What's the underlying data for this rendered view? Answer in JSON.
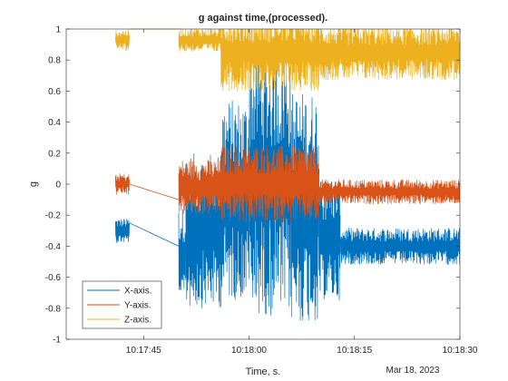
{
  "chart_data": {
    "type": "line",
    "title": "g against time,(processed).",
    "xlabel": "Time, s.",
    "ylabel": "g",
    "x_date_label": "Mar 18, 2023",
    "x_range": [
      "10:17:34",
      "10:18:30"
    ],
    "x_ticks": [
      "10:17:45",
      "10:18:00",
      "10:18:15",
      "10:18:30"
    ],
    "ylim": [
      -1,
      1
    ],
    "y_ticks": [
      -1,
      -0.8,
      -0.6,
      -0.4,
      -0.2,
      0,
      0.2,
      0.4,
      0.6,
      0.8,
      1
    ],
    "grid": false,
    "legend_position": "bottom-left",
    "series": [
      {
        "name": "X-axis.",
        "color": "#0072BD",
        "segments": [
          {
            "t_start": "10:17:41",
            "t_end": "10:17:43",
            "center": -0.3,
            "half_amplitude": 0.08
          },
          {
            "t_start": "10:17:50",
            "t_end": "10:17:51",
            "center": -0.45,
            "half_amplitude": 0.3
          },
          {
            "t_start": "10:17:51",
            "t_end": "10:17:56",
            "center": -0.3,
            "half_amplitude": 0.5
          },
          {
            "t_start": "10:17:56",
            "t_end": "10:18:00",
            "center": -0.1,
            "half_amplitude": 0.65
          },
          {
            "t_start": "10:18:00",
            "t_end": "10:18:06",
            "center": 0.0,
            "half_amplitude": 0.85
          },
          {
            "t_start": "10:18:06",
            "t_end": "10:18:10",
            "center": -0.15,
            "half_amplitude": 0.75
          },
          {
            "t_start": "10:18:10",
            "t_end": "10:18:13",
            "center": -0.35,
            "half_amplitude": 0.4
          },
          {
            "t_start": "10:18:13",
            "t_end": "10:18:30",
            "center": -0.4,
            "half_amplitude": 0.12
          }
        ],
        "gap_line": [
          [
            "10:17:43",
            -0.25
          ],
          [
            "10:17:50",
            -0.4
          ]
        ]
      },
      {
        "name": "Y-axis.",
        "color": "#D95319",
        "segments": [
          {
            "t_start": "10:17:41",
            "t_end": "10:17:43",
            "center": 0.0,
            "half_amplitude": 0.07
          },
          {
            "t_start": "10:17:50",
            "t_end": "10:17:56",
            "center": -0.02,
            "half_amplitude": 0.18
          },
          {
            "t_start": "10:17:56",
            "t_end": "10:18:10",
            "center": 0.0,
            "half_amplitude": 0.25
          },
          {
            "t_start": "10:18:10",
            "t_end": "10:18:30",
            "center": -0.05,
            "half_amplitude": 0.08
          }
        ],
        "gap_line": [
          [
            "10:17:43",
            0.0
          ],
          [
            "10:17:50",
            -0.1
          ]
        ]
      },
      {
        "name": "Z-axis.",
        "color": "#EDB120",
        "segments": [
          {
            "t_start": "10:17:41",
            "t_end": "10:17:43",
            "center": 0.93,
            "half_amplitude": 0.07
          },
          {
            "t_start": "10:17:43",
            "t_end": "10:17:50",
            "center": 1.0,
            "half_amplitude": 0.0
          },
          {
            "t_start": "10:17:50",
            "t_end": "10:17:56",
            "center": 0.93,
            "half_amplitude": 0.08
          },
          {
            "t_start": "10:17:56",
            "t_end": "10:18:10",
            "center": 0.85,
            "half_amplitude": 0.25
          },
          {
            "t_start": "10:18:10",
            "t_end": "10:18:30",
            "center": 0.85,
            "half_amplitude": 0.18
          }
        ]
      }
    ]
  }
}
